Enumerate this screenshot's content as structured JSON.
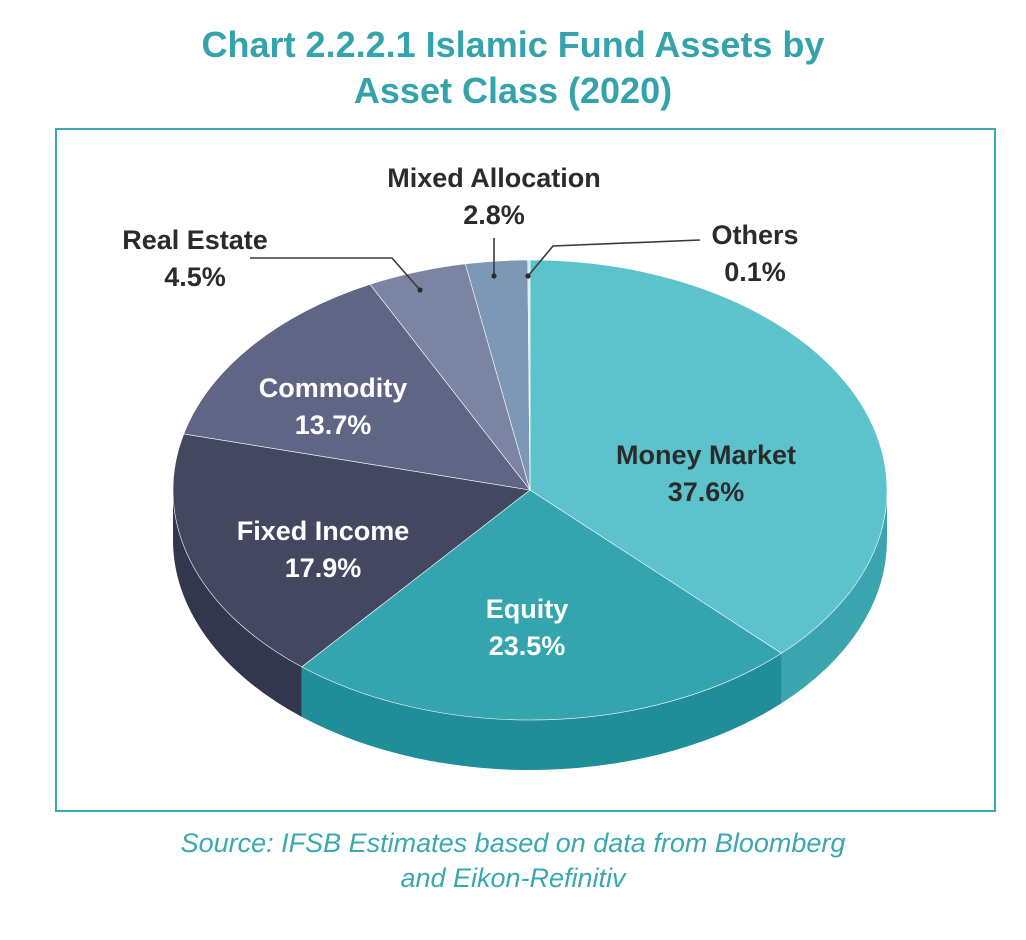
{
  "title_line1": "Chart 2.2.2.1 Islamic Fund Assets by",
  "title_line2": "Asset Class (2020)",
  "source_line1": "Source: IFSB Estimates based on data from Bloomberg",
  "source_line2": "and Eikon-Refinitiv",
  "chart_data": {
    "type": "pie",
    "style": "3d-pie",
    "unit": "%",
    "slices": [
      {
        "name": "Money Market",
        "value": 37.6,
        "label": "37.6%",
        "color": "#5cc3cd",
        "side": "#3aa5ae"
      },
      {
        "name": "Equity",
        "value": 23.5,
        "label": "23.5%",
        "color": "#34a4ae",
        "side": "#1f8e98"
      },
      {
        "name": "Fixed Income",
        "value": 17.9,
        "label": "17.9%",
        "color": "#434760",
        "side": "#33374d"
      },
      {
        "name": "Commodity",
        "value": 13.7,
        "label": "13.7%",
        "color": "#5e6585",
        "side": "#4a5070"
      },
      {
        "name": "Real Estate",
        "value": 4.5,
        "label": "4.5%",
        "color": "#7b84a3",
        "side": "#636b8a"
      },
      {
        "name": "Mixed Allocation",
        "value": 2.8,
        "label": "2.8%",
        "color": "#7d98b4",
        "side": "#66809a"
      },
      {
        "name": "Others",
        "value": 0.1,
        "label": "0.1%",
        "color": "#c9e8f0",
        "side": "#a9cdd6"
      }
    ]
  }
}
